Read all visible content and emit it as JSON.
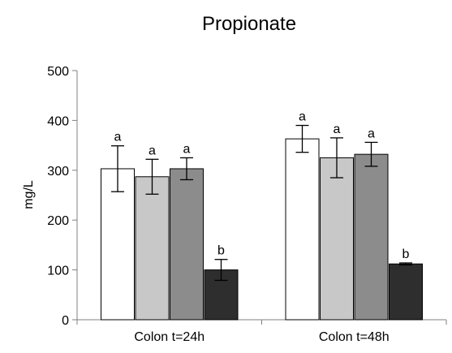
{
  "chart_data": {
    "type": "bar",
    "title": "Propionate",
    "xlabel": "",
    "ylabel": "mg/L",
    "ylim": [
      0,
      500
    ],
    "yticks": [
      0,
      100,
      200,
      300,
      400,
      500
    ],
    "grid": false,
    "legend": "none",
    "categories": [
      "Colon t=24h",
      "Colon t=48h"
    ],
    "series": [
      {
        "color": "#ffffff",
        "values": [
          303,
          363
        ],
        "errors": [
          46,
          27
        ],
        "labels": [
          "a",
          "a"
        ]
      },
      {
        "color": "#c8c8c8",
        "values": [
          287,
          325
        ],
        "errors": [
          35,
          40
        ],
        "labels": [
          "a",
          "a"
        ]
      },
      {
        "color": "#8c8c8c",
        "values": [
          303,
          332
        ],
        "errors": [
          22,
          24
        ],
        "labels": [
          "a",
          "a"
        ]
      },
      {
        "color": "#2e2e2e",
        "values": [
          100,
          112
        ],
        "errors": [
          21,
          2
        ],
        "labels": [
          "b",
          "b"
        ]
      }
    ]
  }
}
